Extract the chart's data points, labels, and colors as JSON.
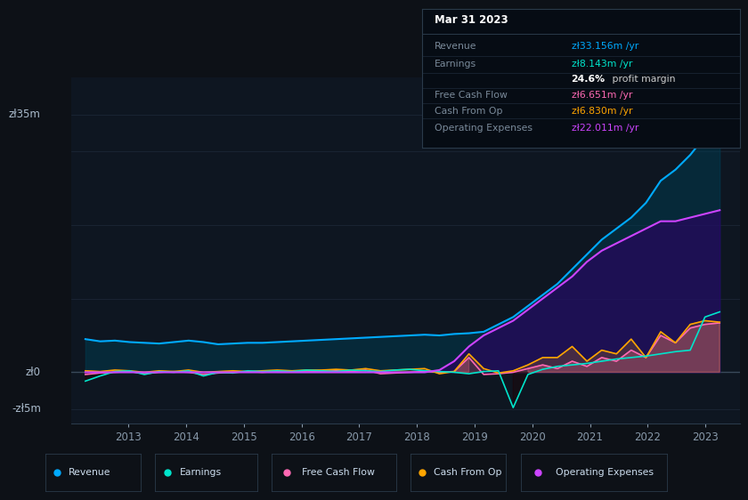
{
  "background_color": "#0d1117",
  "plot_bg_color": "#0e1621",
  "grid_color": "#1e2a3a",
  "box_bg_color": "#060c14",
  "ylabel_top": "zł35m",
  "ylabel_zero": "zł0",
  "ylabel_neg": "-zł5m",
  "x_labels": [
    "2013",
    "2014",
    "2015",
    "2016",
    "2017",
    "2018",
    "2019",
    "2020",
    "2021",
    "2022",
    "2023"
  ],
  "legend": [
    {
      "label": "Revenue",
      "color": "#00aaff"
    },
    {
      "label": "Earnings",
      "color": "#00e5cc"
    },
    {
      "label": "Free Cash Flow",
      "color": "#ff69b4"
    },
    {
      "label": "Cash From Op",
      "color": "#ffa500"
    },
    {
      "label": "Operating Expenses",
      "color": "#cc44ff"
    }
  ],
  "c_revenue": "#00aaff",
  "c_earnings": "#00e5cc",
  "c_fcf": "#ff69b4",
  "c_cash_op": "#ffa500",
  "c_op_exp": "#cc44ff",
  "fill_revenue": "#003d52",
  "fill_op_exp": "#2d0066",
  "ylim_lo": -7,
  "ylim_hi": 40,
  "xlim_lo": 2012.0,
  "xlim_hi": 2023.6
}
